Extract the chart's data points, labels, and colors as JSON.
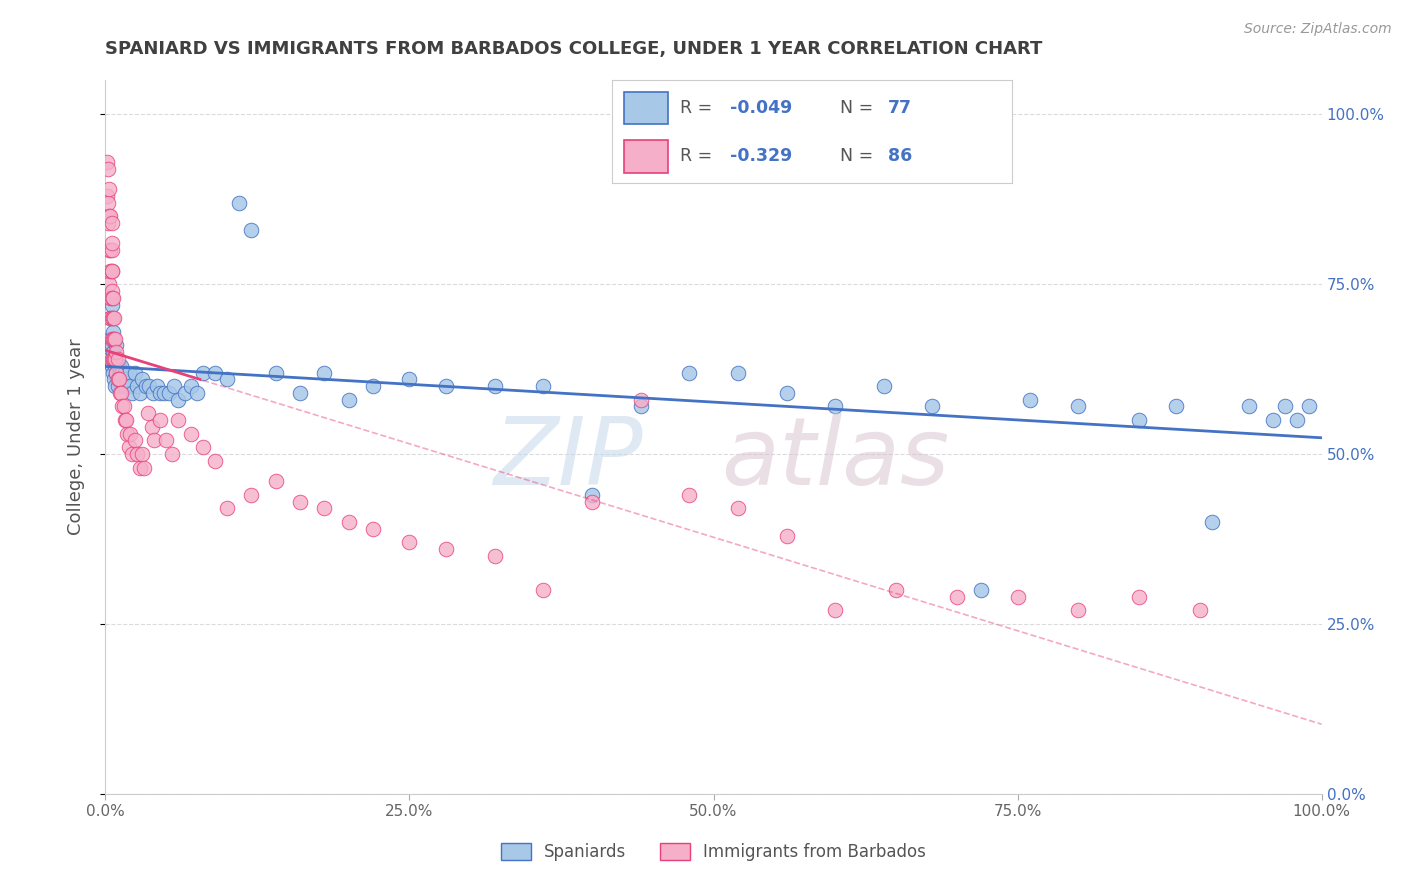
{
  "title": "SPANIARD VS IMMIGRANTS FROM BARBADOS COLLEGE, UNDER 1 YEAR CORRELATION CHART",
  "source": "Source: ZipAtlas.com",
  "ylabel": "College, Under 1 year",
  "series1_label": "Spaniards",
  "series2_label": "Immigrants from Barbados",
  "series1_R": -0.049,
  "series1_N": 77,
  "series2_R": -0.329,
  "series2_N": 86,
  "series1_color": "#a8c8e8",
  "series2_color": "#f5afc8",
  "trendline1_color": "#4472c4",
  "trendline2_color": "#e8407a",
  "bg_color": "#ffffff",
  "grid_color": "#cccccc",
  "title_color": "#404040",
  "source_color": "#999999",
  "axis_label_color": "#555555",
  "right_tick_color": "#4472c4",
  "legend_value_color": "#4472c4",
  "ytick_labels": [
    "0.0%",
    "25.0%",
    "50.0%",
    "75.0%",
    "100.0%"
  ],
  "xtick_labels": [
    "0.0%",
    "25.0%",
    "50.0%",
    "75.0%",
    "100.0%"
  ],
  "series1_x": [
    0.003,
    0.004,
    0.004,
    0.005,
    0.005,
    0.005,
    0.006,
    0.006,
    0.006,
    0.007,
    0.007,
    0.008,
    0.008,
    0.009,
    0.009,
    0.01,
    0.01,
    0.011,
    0.012,
    0.013,
    0.014,
    0.015,
    0.016,
    0.017,
    0.018,
    0.019,
    0.02,
    0.022,
    0.024,
    0.026,
    0.028,
    0.03,
    0.033,
    0.036,
    0.039,
    0.042,
    0.045,
    0.048,
    0.052,
    0.056,
    0.06,
    0.065,
    0.07,
    0.075,
    0.08,
    0.09,
    0.1,
    0.11,
    0.12,
    0.14,
    0.16,
    0.18,
    0.2,
    0.22,
    0.25,
    0.28,
    0.32,
    0.36,
    0.4,
    0.44,
    0.48,
    0.52,
    0.56,
    0.6,
    0.64,
    0.68,
    0.72,
    0.76,
    0.8,
    0.85,
    0.88,
    0.91,
    0.94,
    0.96,
    0.97,
    0.98,
    0.99
  ],
  "series1_y": [
    0.64,
    0.67,
    0.7,
    0.63,
    0.66,
    0.72,
    0.62,
    0.65,
    0.68,
    0.61,
    0.64,
    0.6,
    0.63,
    0.62,
    0.66,
    0.6,
    0.63,
    0.63,
    0.62,
    0.63,
    0.62,
    0.6,
    0.62,
    0.6,
    0.61,
    0.62,
    0.6,
    0.59,
    0.62,
    0.6,
    0.59,
    0.61,
    0.6,
    0.6,
    0.59,
    0.6,
    0.59,
    0.59,
    0.59,
    0.6,
    0.58,
    0.59,
    0.6,
    0.59,
    0.62,
    0.62,
    0.61,
    0.87,
    0.83,
    0.62,
    0.59,
    0.62,
    0.58,
    0.6,
    0.61,
    0.6,
    0.6,
    0.6,
    0.44,
    0.57,
    0.62,
    0.62,
    0.59,
    0.57,
    0.6,
    0.57,
    0.3,
    0.58,
    0.57,
    0.55,
    0.57,
    0.4,
    0.57,
    0.55,
    0.57,
    0.55,
    0.57
  ],
  "series2_x": [
    0.001,
    0.001,
    0.002,
    0.002,
    0.002,
    0.003,
    0.003,
    0.003,
    0.003,
    0.004,
    0.004,
    0.004,
    0.004,
    0.004,
    0.005,
    0.005,
    0.005,
    0.005,
    0.005,
    0.005,
    0.005,
    0.005,
    0.005,
    0.005,
    0.006,
    0.006,
    0.006,
    0.006,
    0.007,
    0.007,
    0.007,
    0.008,
    0.008,
    0.009,
    0.009,
    0.01,
    0.01,
    0.011,
    0.012,
    0.013,
    0.014,
    0.015,
    0.016,
    0.017,
    0.018,
    0.019,
    0.02,
    0.022,
    0.024,
    0.026,
    0.028,
    0.03,
    0.032,
    0.035,
    0.038,
    0.04,
    0.045,
    0.05,
    0.055,
    0.06,
    0.07,
    0.08,
    0.09,
    0.1,
    0.12,
    0.14,
    0.16,
    0.18,
    0.2,
    0.22,
    0.25,
    0.28,
    0.32,
    0.36,
    0.4,
    0.44,
    0.48,
    0.52,
    0.56,
    0.6,
    0.65,
    0.7,
    0.75,
    0.8,
    0.85,
    0.9
  ],
  "series2_y": [
    0.93,
    0.88,
    0.92,
    0.87,
    0.84,
    0.89,
    0.85,
    0.8,
    0.75,
    0.85,
    0.8,
    0.77,
    0.73,
    0.7,
    0.84,
    0.8,
    0.77,
    0.74,
    0.7,
    0.67,
    0.64,
    0.81,
    0.77,
    0.73,
    0.73,
    0.7,
    0.67,
    0.64,
    0.7,
    0.67,
    0.64,
    0.67,
    0.64,
    0.65,
    0.62,
    0.64,
    0.61,
    0.61,
    0.59,
    0.59,
    0.57,
    0.57,
    0.55,
    0.55,
    0.53,
    0.51,
    0.53,
    0.5,
    0.52,
    0.5,
    0.48,
    0.5,
    0.48,
    0.56,
    0.54,
    0.52,
    0.55,
    0.52,
    0.5,
    0.55,
    0.53,
    0.51,
    0.49,
    0.42,
    0.44,
    0.46,
    0.43,
    0.42,
    0.4,
    0.39,
    0.37,
    0.36,
    0.35,
    0.3,
    0.43,
    0.58,
    0.44,
    0.42,
    0.38,
    0.27,
    0.3,
    0.29,
    0.29,
    0.27,
    0.29,
    0.27
  ]
}
